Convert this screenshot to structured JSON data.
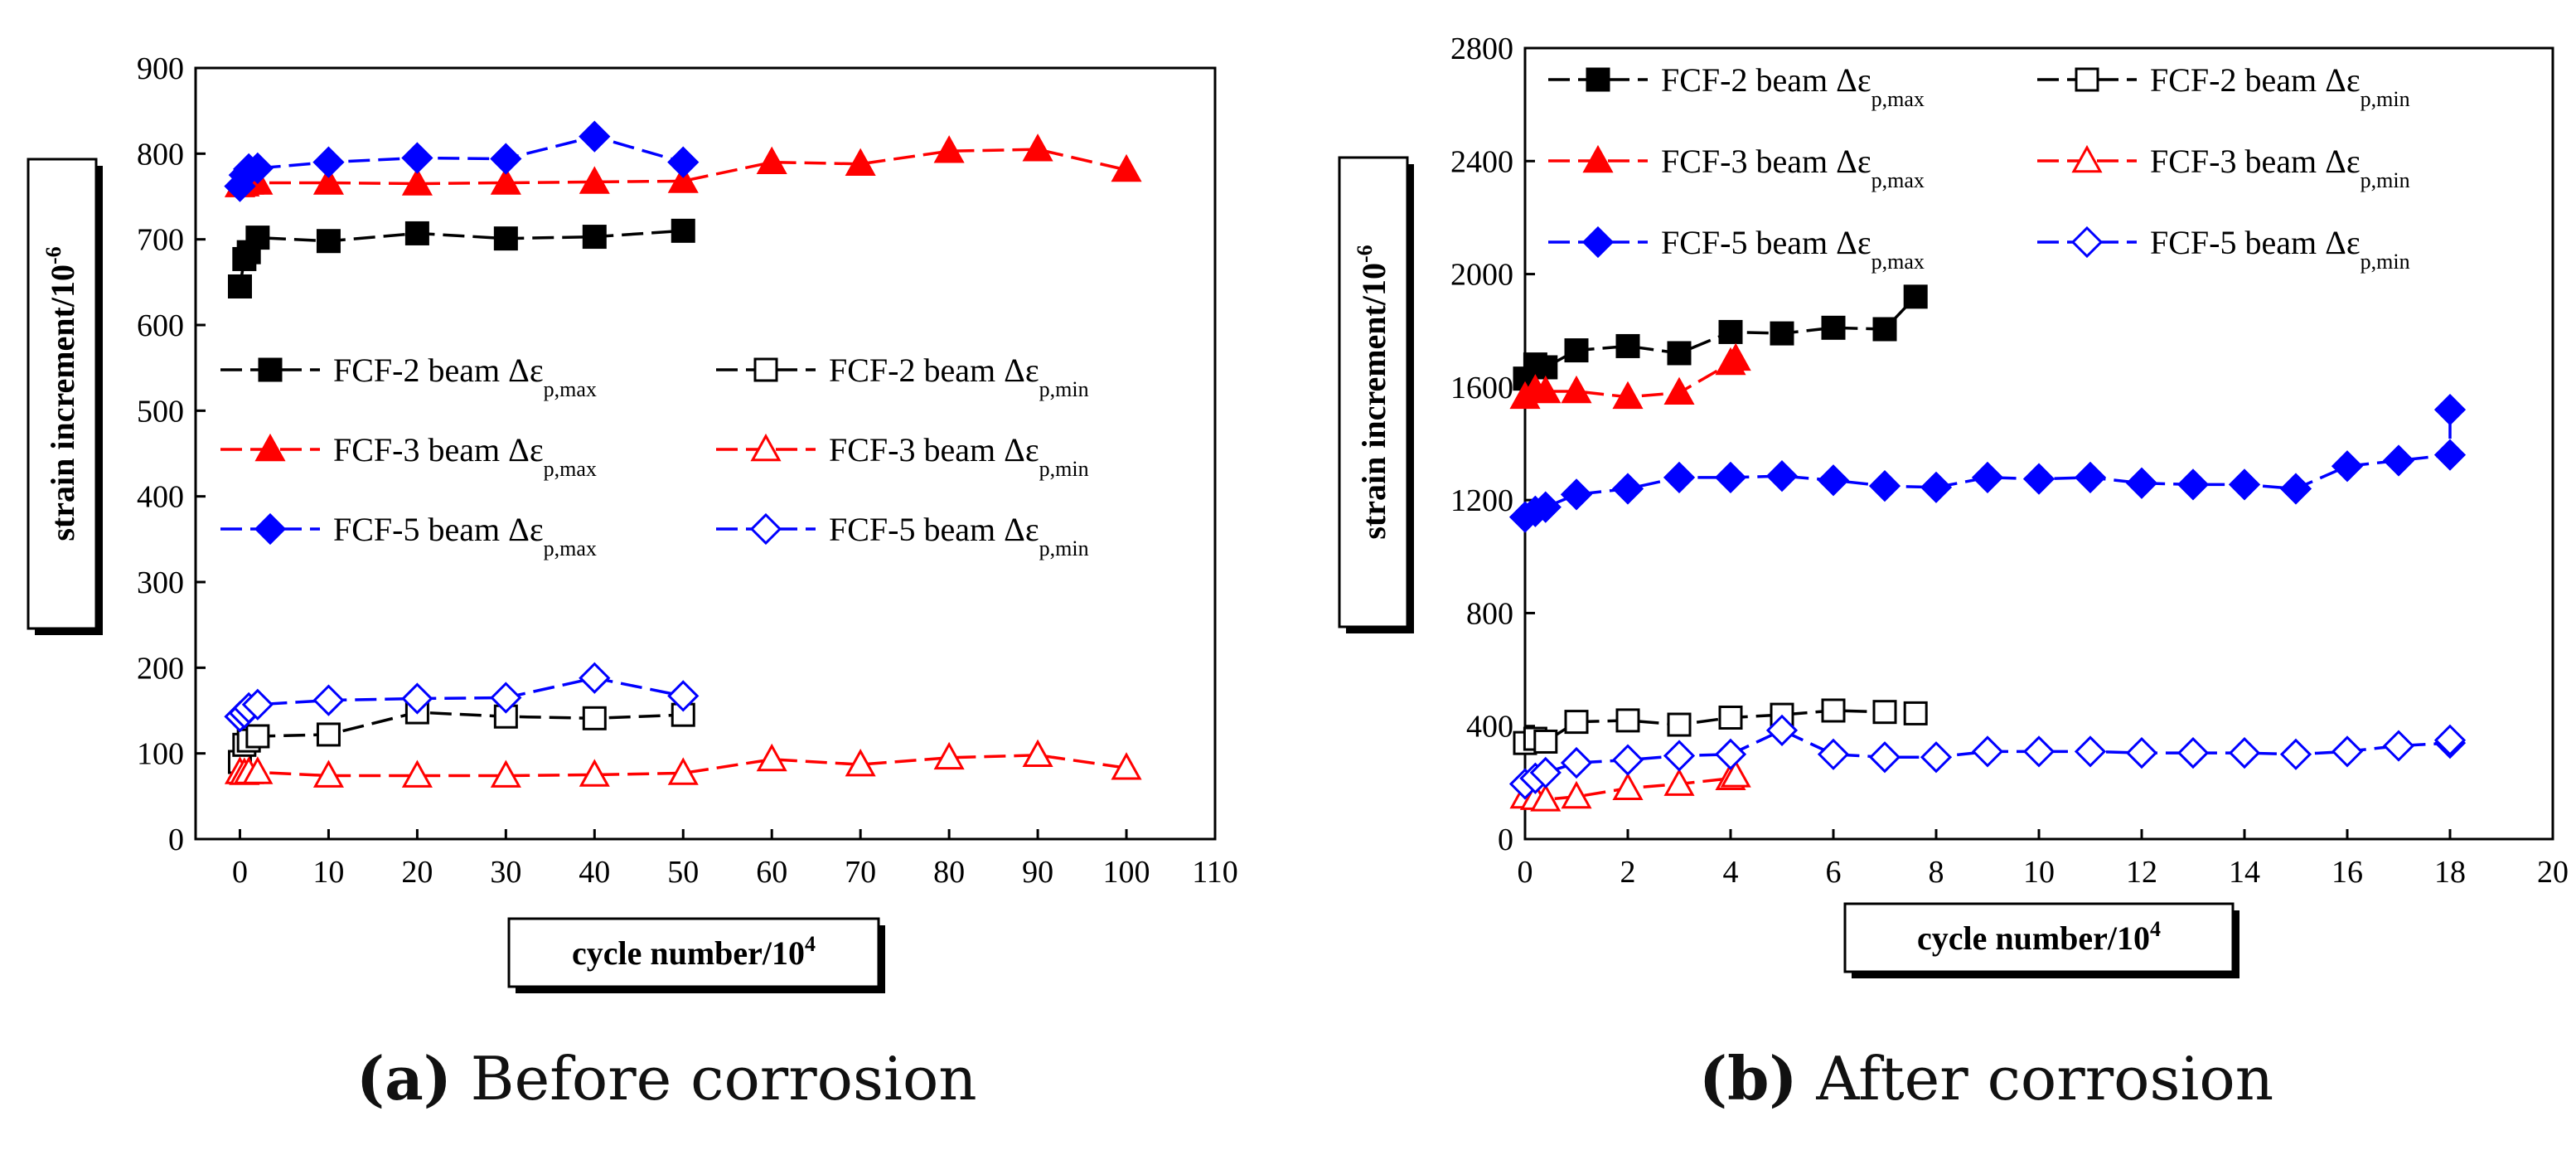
{
  "chart_data": [
    {
      "type": "line",
      "xlabel": "cycle number/10",
      "xlabel_exp": "4",
      "ylabel": "strain increment/10",
      "ylabel_exp": "-6",
      "xlim": [
        -5,
        110
      ],
      "ylim": [
        0,
        900
      ],
      "xticks": [
        0,
        10,
        20,
        30,
        40,
        50,
        60,
        70,
        80,
        90,
        100,
        110
      ],
      "yticks": [
        0,
        100,
        200,
        300,
        400,
        500,
        600,
        700,
        800,
        900
      ],
      "legend": "middle-left",
      "caption_letter": "(a)",
      "caption_text": " Before corrosion",
      "series": [
        {
          "name": "FCF-2 beam Δε_p,max",
          "label": "FCF-2 beam Δε",
          "sub": "p,max",
          "color": "#000000",
          "marker": "square",
          "filled": true,
          "x": [
            0,
            0.5,
            1,
            2,
            10,
            20,
            30,
            40,
            50
          ],
          "y": [
            645,
            677,
            685,
            702,
            698,
            707,
            701,
            703,
            710
          ]
        },
        {
          "name": "FCF-2 beam Δε_p,min",
          "label": "FCF-2 beam Δε",
          "sub": "p,min",
          "color": "#000000",
          "marker": "square",
          "filled": false,
          "x": [
            0,
            0.5,
            1,
            2,
            10,
            20,
            30,
            40,
            50
          ],
          "y": [
            90,
            110,
            115,
            120,
            122,
            148,
            143,
            141,
            145
          ]
        },
        {
          "name": "FCF-3 beam Δε_p,max",
          "label": "FCF-3 beam Δε",
          "sub": "p,max",
          "color": "#ff0000",
          "marker": "triangle",
          "filled": true,
          "x": [
            0,
            0.5,
            1,
            2,
            10,
            20,
            30,
            40,
            50,
            60,
            70,
            80,
            90,
            100
          ],
          "y": [
            763,
            764,
            766,
            766,
            766,
            765,
            766,
            767,
            768,
            790,
            788,
            803,
            805,
            781
          ]
        },
        {
          "name": "FCF-3 beam Δε_p,min",
          "label": "FCF-3 beam Δε",
          "sub": "p,min",
          "color": "#ff0000",
          "marker": "triangle",
          "filled": false,
          "x": [
            0,
            0.5,
            1,
            2,
            10,
            20,
            30,
            40,
            50,
            60,
            70,
            80,
            90,
            100
          ],
          "y": [
            78,
            77,
            78,
            78,
            74,
            74,
            74,
            75,
            77,
            93,
            87,
            95,
            98,
            83
          ]
        },
        {
          "name": "FCF-5 beam Δε_p,max",
          "label": "FCF-5 beam Δε",
          "sub": "p,max",
          "color": "#0000ff",
          "marker": "diamond",
          "filled": true,
          "x": [
            0,
            0.5,
            1,
            2,
            10,
            20,
            30,
            40,
            50
          ],
          "y": [
            762,
            775,
            782,
            783,
            790,
            795,
            794,
            820,
            790
          ]
        },
        {
          "name": "FCF-5 beam Δε_p,min",
          "label": "FCF-5 beam Δε",
          "sub": "p,min",
          "color": "#0000ff",
          "marker": "diamond",
          "filled": false,
          "x": [
            0,
            0.5,
            1,
            2,
            10,
            20,
            30,
            40,
            50
          ],
          "y": [
            143,
            147,
            153,
            157,
            162,
            164,
            165,
            188,
            167
          ]
        }
      ]
    },
    {
      "type": "line",
      "xlabel": "cycle number/10",
      "xlabel_exp": "4",
      "ylabel": "strain increment/10",
      "ylabel_exp": "-6",
      "xlim": [
        0,
        20
      ],
      "ylim": [
        0,
        2800
      ],
      "xticks": [
        0,
        2,
        4,
        6,
        8,
        10,
        12,
        14,
        16,
        18,
        20
      ],
      "yticks": [
        0,
        400,
        800,
        1200,
        1600,
        2000,
        2400,
        2800
      ],
      "legend": "top",
      "caption_letter": "(b)",
      "caption_text": " After corrosion",
      "series": [
        {
          "name": "FCF-2 beam Δε_p,max",
          "label": "FCF-2 beam Δε",
          "sub": "p,max",
          "color": "#000000",
          "marker": "square",
          "filled": true,
          "x": [
            0,
            0.2,
            0.4,
            1,
            2,
            3,
            4,
            5,
            6,
            7,
            7.6
          ],
          "y": [
            1630,
            1680,
            1670,
            1730,
            1745,
            1720,
            1795,
            1790,
            1810,
            1805,
            1920
          ]
        },
        {
          "name": "FCF-2 beam Δε_p,min",
          "label": "FCF-2 beam Δε",
          "sub": "p,min",
          "color": "#000000",
          "marker": "square",
          "filled": false,
          "x": [
            0,
            0.2,
            0.4,
            1,
            2,
            3,
            4,
            5,
            6,
            7,
            7.6
          ],
          "y": [
            340,
            355,
            345,
            415,
            420,
            405,
            430,
            440,
            455,
            450,
            445
          ]
        },
        {
          "name": "FCF-3 beam Δε_p,max",
          "label": "FCF-3 beam Δε",
          "sub": "p,max",
          "color": "#ff0000",
          "marker": "triangle",
          "filled": true,
          "x": [
            0,
            0.2,
            0.4,
            1,
            2,
            3,
            4,
            4.1
          ],
          "y": [
            1565,
            1590,
            1585,
            1585,
            1565,
            1580,
            1685,
            1700
          ]
        },
        {
          "name": "FCF-3 beam Δε_p,min",
          "label": "FCF-3 beam Δε",
          "sub": "p,min",
          "color": "#ff0000",
          "marker": "triangle",
          "filled": false,
          "x": [
            0,
            0.2,
            0.4,
            1,
            2,
            3,
            4,
            4.1
          ],
          "y": [
            150,
            145,
            140,
            150,
            180,
            195,
            215,
            225
          ]
        },
        {
          "name": "FCF-5 beam Δε_p,max",
          "label": "FCF-5 beam Δε",
          "sub": "p,max",
          "color": "#0000ff",
          "marker": "diamond",
          "filled": true,
          "x": [
            0,
            0.2,
            0.4,
            1,
            2,
            3,
            4,
            5,
            6,
            7,
            8,
            9,
            10,
            11,
            12,
            13,
            14,
            15,
            16,
            17,
            18,
            18
          ],
          "y": [
            1140,
            1160,
            1175,
            1220,
            1240,
            1280,
            1280,
            1285,
            1270,
            1250,
            1245,
            1280,
            1275,
            1280,
            1260,
            1255,
            1255,
            1240,
            1320,
            1340,
            1360,
            1520
          ]
        },
        {
          "name": "FCF-5 beam Δε_p,min",
          "label": "FCF-5 beam Δε",
          "sub": "p,min",
          "color": "#0000ff",
          "marker": "diamond",
          "filled": false,
          "x": [
            0,
            0.2,
            0.4,
            1,
            2,
            3,
            4,
            5,
            6,
            7,
            8,
            9,
            10,
            11,
            12,
            13,
            14,
            15,
            16,
            17,
            18,
            18
          ],
          "y": [
            195,
            215,
            235,
            270,
            280,
            295,
            300,
            385,
            300,
            290,
            290,
            310,
            310,
            310,
            305,
            305,
            305,
            300,
            310,
            330,
            340,
            350
          ]
        }
      ]
    }
  ]
}
